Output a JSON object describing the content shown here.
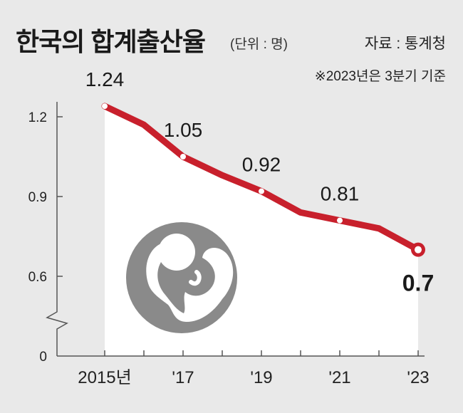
{
  "header": {
    "title": "한국의 합계출산율",
    "unit": "(단위 : 명)",
    "source": "자료 : 통계청",
    "note": "※2023년은 3분기 기준"
  },
  "colors": {
    "background": "#e9e9e9",
    "line": "#c8202c",
    "plot_fill": "#ffffff",
    "icon": "#8a8a8a"
  },
  "chart_data": {
    "type": "line",
    "title": "한국의 합계출산율",
    "unit": "(단위 : 명)",
    "x": [
      2015,
      2016,
      2017,
      2018,
      2019,
      2020,
      2021,
      2022,
      2023
    ],
    "series": [
      {
        "values": [
          1.24,
          1.17,
          1.05,
          0.98,
          0.92,
          0.84,
          0.81,
          0.78,
          0.7
        ]
      }
    ],
    "x_tick_labels": [
      {
        "x": 2015,
        "label": "2015년"
      },
      {
        "x": 2017,
        "label": "'17"
      },
      {
        "x": 2019,
        "label": "'19"
      },
      {
        "x": 2021,
        "label": "'21"
      },
      {
        "x": 2023,
        "label": "'23"
      }
    ],
    "y_ticks": [
      {
        "value": 1.2,
        "label": "1.2"
      },
      {
        "value": 0.9,
        "label": "0.9"
      },
      {
        "value": 0.6,
        "label": "0.6"
      },
      {
        "value": 0,
        "label": "0"
      }
    ],
    "data_labels": [
      {
        "x": 2015,
        "y": 1.24,
        "label": "1.24"
      },
      {
        "x": 2017,
        "y": 1.05,
        "label": "1.05"
      },
      {
        "x": 2019,
        "y": 0.92,
        "label": "0.92"
      },
      {
        "x": 2021,
        "y": 0.81,
        "label": "0.81"
      },
      {
        "x": 2023,
        "y": 0.7,
        "label": "0.7"
      }
    ],
    "ylim": [
      0.4,
      1.3
    ],
    "axis_break": true,
    "fill_below_line": true,
    "grid": false,
    "legend": false
  }
}
